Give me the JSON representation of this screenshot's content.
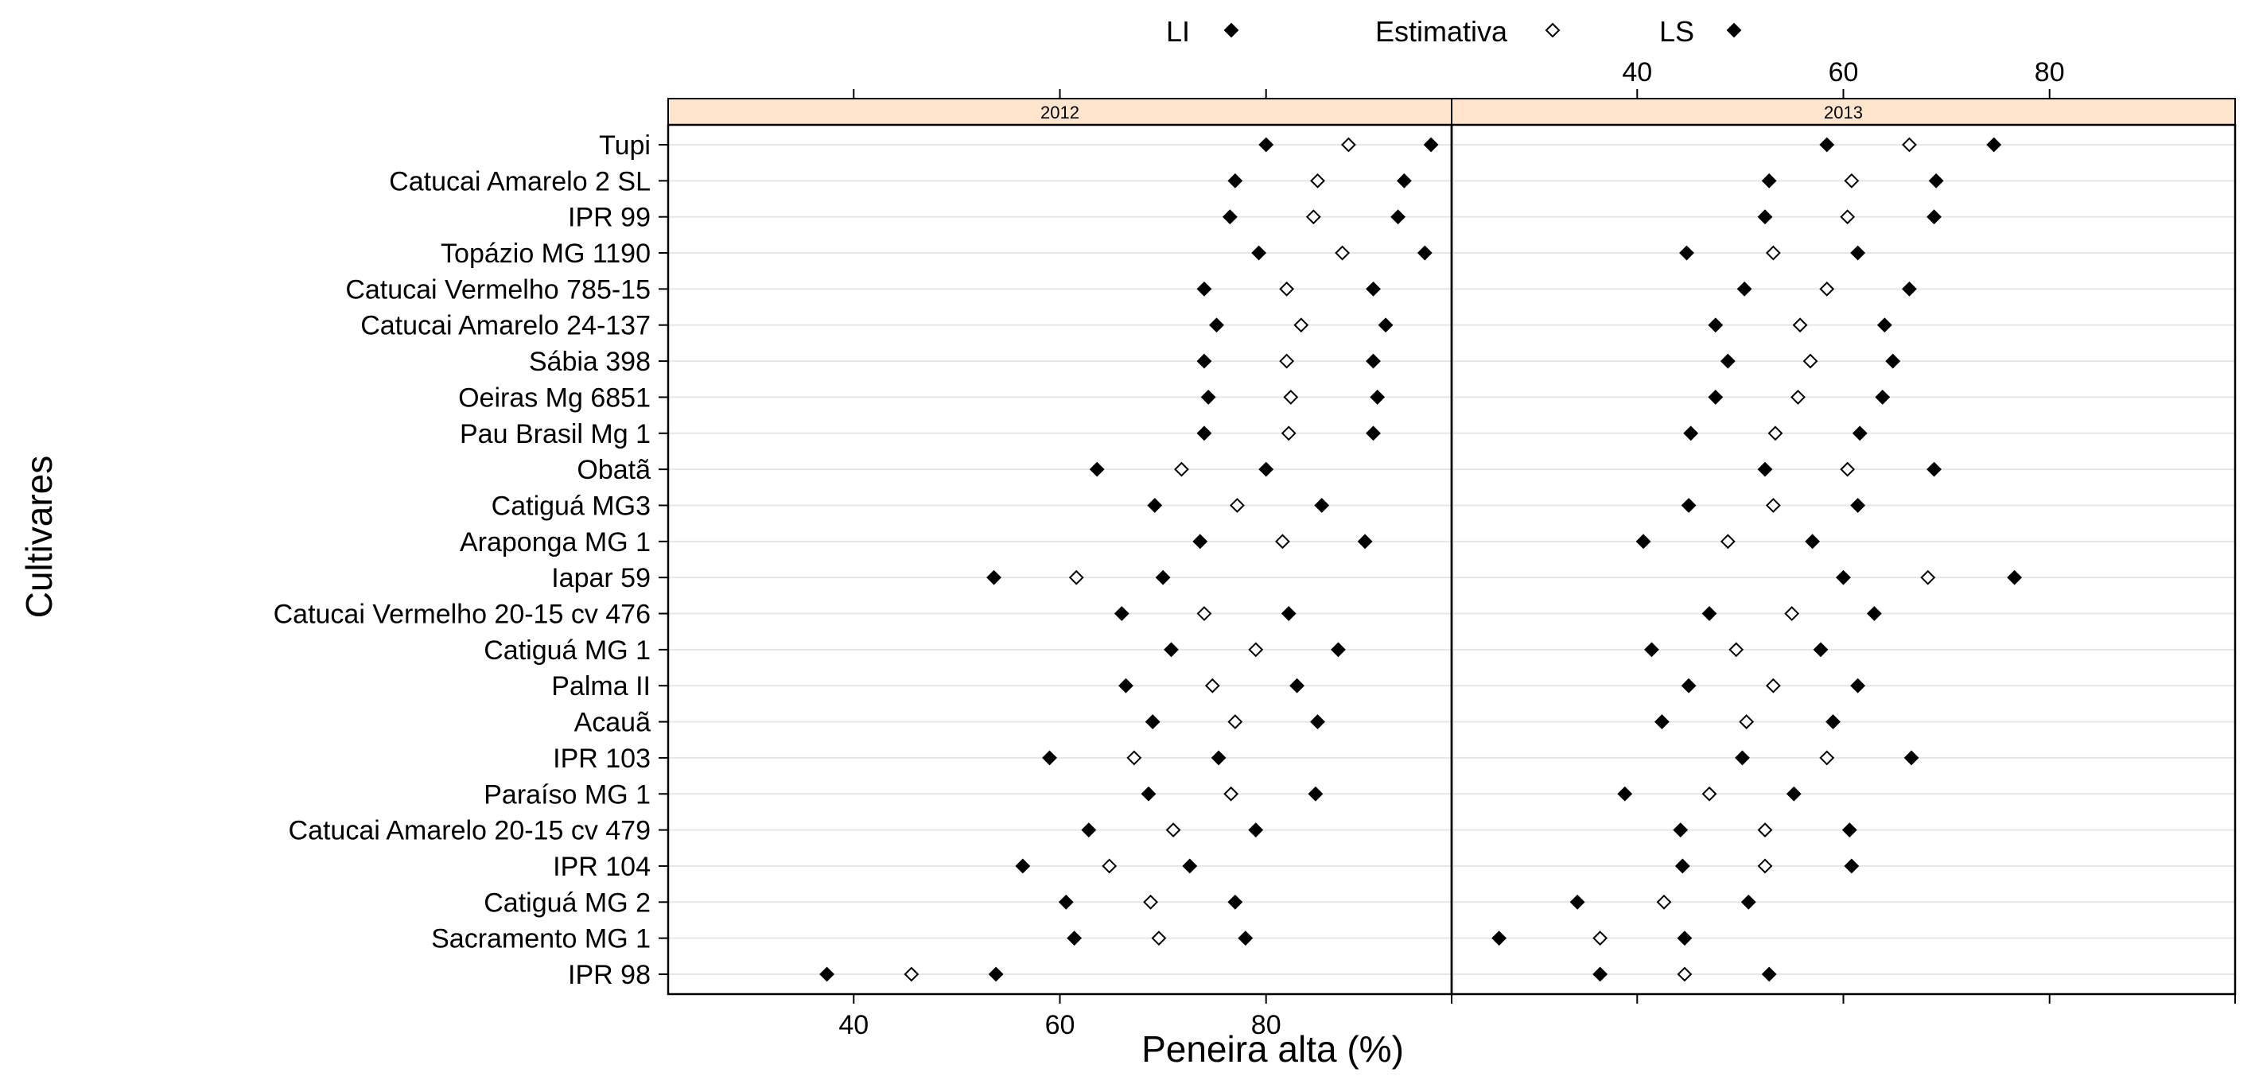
{
  "chart_data": {
    "type": "scatter",
    "xlabel": "Peneira alta (%)",
    "ylabel": "Cultivares",
    "xlim": [
      22,
      98
    ],
    "xticks": [
      40,
      60,
      80
    ],
    "grid": true,
    "legend_position": "top",
    "legend": [
      {
        "name": "LI",
        "marker": "filled-diamond"
      },
      {
        "name": "Estimativa",
        "marker": "open-diamond"
      },
      {
        "name": "LS",
        "marker": "filled-diamond"
      }
    ],
    "categories": [
      "Tupi",
      "Catucai Amarelo 2 SL",
      "IPR 99",
      "Topázio MG 1190",
      "Catucai Vermelho 785-15",
      "Catucai Amarelo 24-137",
      "Sábia 398",
      "Oeiras Mg 6851",
      "Pau Brasil Mg 1",
      "Obatã",
      "Catiguá MG3",
      "Araponga MG 1",
      "Iapar 59",
      "Catucai Vermelho 20-15 cv 476",
      "Catiguá MG 1",
      "Palma II",
      "Acauã",
      "IPR 103",
      "Paraíso MG 1",
      "Catucai Amarelo 20-15 cv 479",
      "IPR 104",
      "Catiguá MG 2",
      "Sacramento MG 1",
      "IPR 98"
    ],
    "panels": [
      {
        "name": "2012",
        "series": [
          {
            "name": "LI",
            "values": [
              80,
              77,
              76.5,
              79.3,
              74,
              75.2,
              74,
              74.4,
              74,
              63.6,
              69.2,
              73.6,
              53.6,
              66,
              70.8,
              66.4,
              69,
              59,
              68.6,
              62.8,
              56.4,
              60.6,
              61.4,
              37.4
            ]
          },
          {
            "name": "Estimativa",
            "values": [
              88,
              85,
              84.6,
              87.4,
              82,
              83.4,
              82,
              82.4,
              82.2,
              71.8,
              77.2,
              81.6,
              61.6,
              74,
              79,
              74.8,
              77,
              67.2,
              76.6,
              71,
              64.8,
              68.8,
              69.6,
              45.6
            ]
          },
          {
            "name": "LS",
            "values": [
              96,
              93.4,
              92.8,
              95.4,
              90.4,
              91.6,
              90.4,
              90.8,
              90.4,
              80,
              85.4,
              89.6,
              70,
              82.2,
              87,
              83,
              85,
              75.4,
              84.8,
              79,
              72.6,
              77,
              78,
              53.8
            ]
          }
        ]
      },
      {
        "name": "2013",
        "series": [
          {
            "name": "LI",
            "values": [
              58.4,
              52.8,
              52.4,
              44.8,
              50.4,
              47.6,
              48.8,
              47.6,
              45.2,
              52.4,
              45,
              40.6,
              60,
              47,
              41.4,
              45,
              42.4,
              50.2,
              38.8,
              44.2,
              44.4,
              34.2,
              26.6,
              36.4
            ]
          },
          {
            "name": "Estimativa",
            "values": [
              66.4,
              60.8,
              60.4,
              53.2,
              58.4,
              55.8,
              56.8,
              55.6,
              53.4,
              60.4,
              53.2,
              48.8,
              68.2,
              55,
              49.6,
              53.2,
              50.6,
              58.4,
              47,
              52.4,
              52.4,
              42.6,
              36.4,
              44.6
            ]
          },
          {
            "name": "LS",
            "values": [
              74.6,
              69,
              68.8,
              61.4,
              66.4,
              64,
              64.8,
              63.8,
              61.6,
              68.8,
              61.4,
              57,
              76.6,
              63,
              57.8,
              61.4,
              59,
              66.6,
              55.2,
              60.6,
              60.8,
              50.8,
              44.6,
              52.8
            ]
          }
        ]
      }
    ]
  }
}
